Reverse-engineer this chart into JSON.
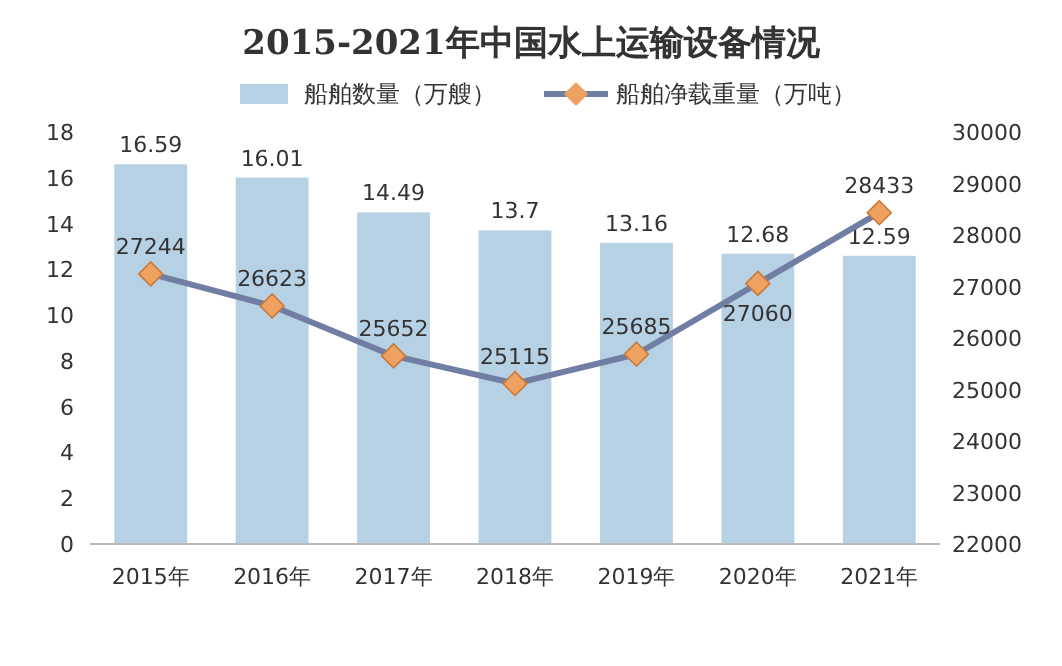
{
  "chart_data": {
    "type": "bar",
    "title": "2015-2021年中国水上运输设备情况",
    "categories": [
      "2015年",
      "2016年",
      "2017年",
      "2018年",
      "2019年",
      "2020年",
      "2021年"
    ],
    "series": [
      {
        "name": "船舶数量（万艘）",
        "color": "#b7d1e4",
        "values": [
          16.59,
          16.01,
          14.49,
          13.7,
          13.16,
          12.68,
          12.59
        ]
      },
      {
        "name": "船舶净载重量（万吨）",
        "type": "line",
        "axis": "y2",
        "color": "#717ea3",
        "values": [
          27244,
          26623,
          25652,
          25115,
          25685,
          27060,
          28433
        ]
      }
    ],
    "ylim": [
      0,
      18
    ],
    "yticks": [
      0,
      2,
      4,
      6,
      8,
      10,
      12,
      14,
      16,
      18
    ],
    "y2lim": [
      22000,
      30000
    ],
    "y2ticks": [
      22000,
      23000,
      24000,
      25000,
      26000,
      27000,
      28000,
      29000,
      30000
    ],
    "data_labels": true,
    "legend": "top",
    "marker": "diamond"
  }
}
